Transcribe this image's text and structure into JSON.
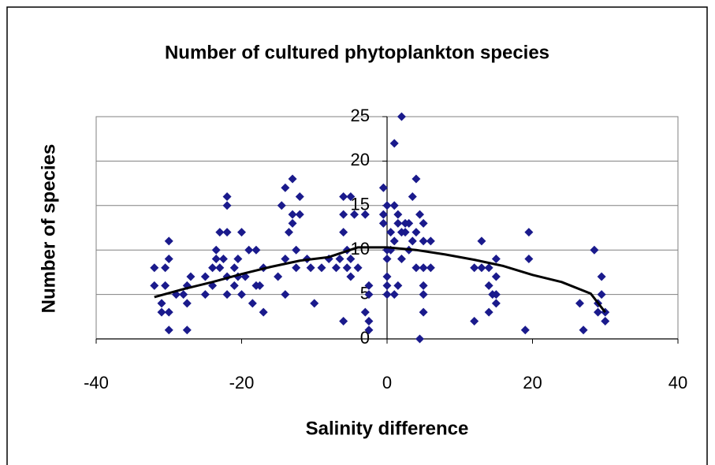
{
  "chart_data": {
    "type": "scatter",
    "title": "Number of cultured phytoplankton species",
    "x_label": "Salinity difference",
    "y_label": "Number of species",
    "xlim": [
      -40,
      40
    ],
    "xticks": [
      -40,
      -20,
      0,
      20,
      40
    ],
    "ylim": [
      0,
      25
    ],
    "yticks": [
      0,
      5,
      10,
      15,
      20,
      25
    ],
    "grid": true,
    "series": [
      {
        "color": "#1a1a8c",
        "x": [
          -32,
          -32,
          -31,
          -31,
          -30.5,
          -30.5,
          -30,
          -30,
          -30,
          -30,
          -29,
          -28,
          -27.5,
          -27.5,
          -27.5,
          -27,
          -25,
          -25,
          -24,
          -24,
          -23.5,
          -23.5,
          -23,
          -23,
          -22.5,
          -22,
          -22,
          -22,
          -22,
          -22,
          -21,
          -21,
          -20.5,
          -20.5,
          -20,
          -20,
          -19.5,
          -19,
          -18.5,
          -18,
          -18,
          -17.5,
          -17,
          -17,
          -15,
          -14.5,
          -14,
          -14,
          -14,
          -13.5,
          -13,
          -13,
          -13,
          -12.5,
          -12.5,
          -12,
          -12,
          -11,
          -10.5,
          -10,
          -9,
          -8,
          -7,
          -6.5,
          -6,
          -6,
          -6,
          -6,
          -5.5,
          -5.5,
          -5,
          -5,
          -5,
          -4.5,
          -4,
          -3,
          -3,
          -2.5,
          -2.5,
          -2.5,
          -2.5,
          -0.5,
          -0.5,
          -0.5,
          0,
          0,
          0,
          0,
          0,
          0,
          0.5,
          0.5,
          1,
          1,
          1,
          1,
          1.5,
          1.5,
          1.5,
          2,
          2,
          2,
          2.5,
          2.5,
          3,
          3,
          3.5,
          3.5,
          4,
          4,
          4,
          4.5,
          4.5,
          5,
          5,
          5,
          5,
          5,
          5,
          6,
          6,
          12,
          12,
          13,
          13,
          14,
          14,
          14,
          14.5,
          15,
          15,
          15,
          15,
          19.5,
          19.5,
          19,
          26.5,
          27,
          28.5,
          29,
          29,
          29.5,
          29.5,
          30,
          30
        ],
        "values": [
          8,
          6,
          4,
          3,
          6,
          8,
          11,
          9,
          1,
          3,
          5,
          5,
          6,
          4,
          1,
          7,
          5,
          7,
          6,
          8,
          9,
          10,
          8,
          12,
          9,
          16,
          15,
          12,
          7,
          5,
          8,
          6,
          9,
          7,
          5,
          12,
          7,
          10,
          4,
          10,
          6,
          6,
          3,
          8,
          7,
          15,
          17,
          9,
          5,
          12,
          13,
          14,
          18,
          10,
          8,
          16,
          14,
          9,
          8,
          4,
          8,
          9,
          8,
          9,
          16,
          12,
          14,
          2,
          10,
          8,
          16,
          7,
          9,
          14,
          8,
          3,
          14,
          6,
          2,
          1,
          5,
          14,
          13,
          17,
          15,
          9,
          10,
          7,
          5,
          6,
          12,
          10,
          22,
          15,
          11,
          5,
          14,
          13,
          6,
          25,
          12,
          9,
          12,
          13,
          10,
          13,
          16,
          11,
          18,
          12,
          8,
          14,
          0,
          13,
          11,
          3,
          5,
          6,
          8,
          8,
          11,
          8,
          2,
          11,
          8,
          8,
          3,
          6,
          5,
          9,
          7,
          5,
          4,
          12,
          9,
          1,
          4,
          1,
          10,
          3,
          4,
          7,
          5,
          3,
          2
        ]
      }
    ],
    "trendline": {
      "color": "#000000",
      "x": [
        -32,
        -28,
        -24,
        -20,
        -16,
        -12,
        -8,
        -4,
        0,
        4,
        8,
        12,
        16,
        20,
        24,
        28,
        30
      ],
      "values": [
        4.7,
        5.6,
        6.4,
        7.3,
        8.1,
        8.8,
        9.2,
        10.3,
        10.3,
        10.0,
        9.5,
        8.9,
        8.2,
        7.2,
        6.4,
        5.1,
        3.0
      ]
    }
  }
}
